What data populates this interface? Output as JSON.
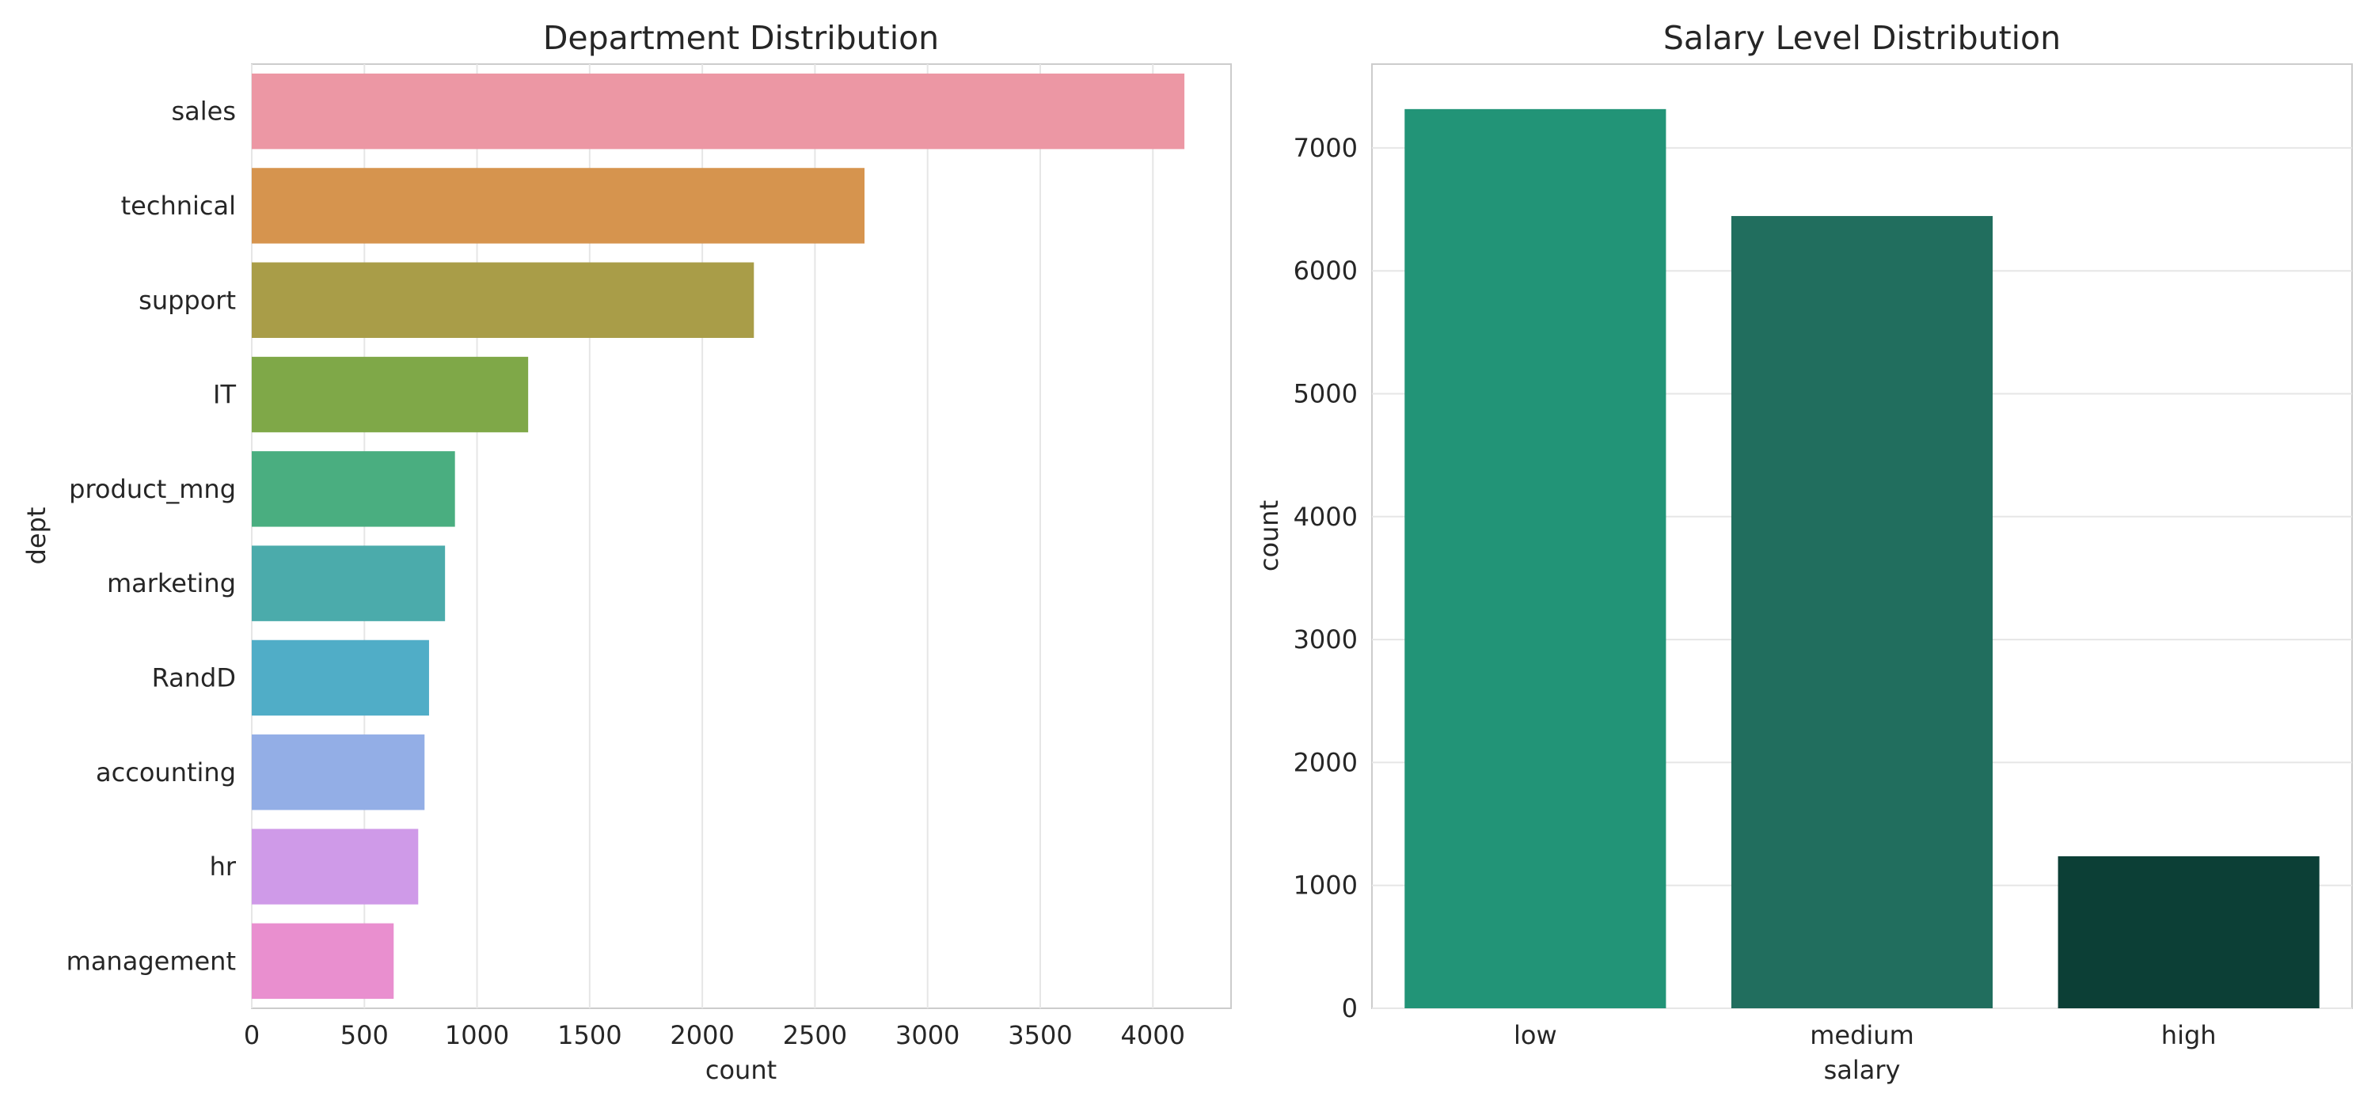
{
  "chart_data": [
    {
      "type": "bar",
      "orientation": "horizontal",
      "title": "Department Distribution",
      "xlabel": "count",
      "ylabel": "dept",
      "categories": [
        "sales",
        "technical",
        "support",
        "IT",
        "product_mng",
        "marketing",
        "RandD",
        "accounting",
        "hr",
        "management"
      ],
      "values": [
        4140,
        2720,
        2229,
        1227,
        902,
        858,
        787,
        767,
        739,
        630
      ],
      "colors": [
        "#ec97a4",
        "#d6944e",
        "#a99d48",
        "#7fa848",
        "#4aae80",
        "#4babab",
        "#50adc7",
        "#93aee6",
        "#cf9ae8",
        "#e98fcf"
      ],
      "xlim": [
        0,
        4347
      ],
      "xticks": [
        "0",
        "500",
        "1000",
        "1500",
        "2000",
        "2500",
        "3000",
        "3500",
        "4000"
      ],
      "grid": "vertical"
    },
    {
      "type": "bar",
      "orientation": "vertical",
      "title": "Salary Level Distribution",
      "xlabel": "salary",
      "ylabel": "count",
      "categories": [
        "low",
        "medium",
        "high"
      ],
      "values": [
        7316,
        6446,
        1237
      ],
      "colors": [
        "#229477",
        "#216e5e",
        "#0c3f36"
      ],
      "ylim": [
        0,
        7682
      ],
      "yticks": [
        "0",
        "1000",
        "2000",
        "3000",
        "4000",
        "5000",
        "6000",
        "7000"
      ],
      "grid": "horizontal"
    }
  ]
}
